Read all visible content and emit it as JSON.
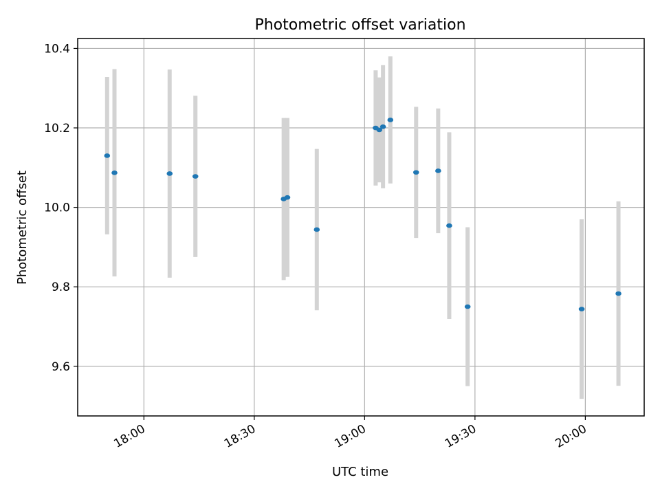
{
  "chart_data": {
    "type": "scatter",
    "title": "Photometric offset variation",
    "xlabel": "UTC time",
    "ylabel": "Photometric offset",
    "x_kind": "time",
    "xlim": [
      "17:42",
      "20:16"
    ],
    "ylim": [
      9.475,
      10.425
    ],
    "x_ticks": [
      "18:00",
      "18:30",
      "19:00",
      "19:30",
      "20:00"
    ],
    "y_ticks": [
      9.6,
      9.8,
      10.0,
      10.2,
      10.4
    ],
    "y_tick_labels": [
      "9.6",
      "9.8",
      "10.0",
      "10.2",
      "10.4"
    ],
    "grid": true,
    "point_color": "#1f77b4",
    "errorbar_color": "#d3d3d3",
    "series": [
      {
        "points": [
          {
            "x": "17:50",
            "y": 10.13,
            "err": 0.198
          },
          {
            "x": "17:52",
            "y": 10.087,
            "err": 0.261
          },
          {
            "x": "18:07",
            "y": 10.085,
            "err": 0.262
          },
          {
            "x": "18:14",
            "y": 10.078,
            "err": 0.203
          },
          {
            "x": "18:38",
            "y": 10.021,
            "err": 0.204
          },
          {
            "x": "18:39",
            "y": 10.025,
            "err": 0.2
          },
          {
            "x": "18:47",
            "y": 9.944,
            "err": 0.203
          },
          {
            "x": "19:03",
            "y": 10.2,
            "err": 0.145
          },
          {
            "x": "19:04",
            "y": 10.195,
            "err": 0.132
          },
          {
            "x": "19:05",
            "y": 10.203,
            "err": 0.155
          },
          {
            "x": "19:07",
            "y": 10.22,
            "err": 0.16
          },
          {
            "x": "19:14",
            "y": 10.088,
            "err": 0.165
          },
          {
            "x": "19:20",
            "y": 10.092,
            "err": 0.157
          },
          {
            "x": "19:23",
            "y": 9.954,
            "err": 0.235
          },
          {
            "x": "19:28",
            "y": 9.75,
            "err": 0.2
          },
          {
            "x": "19:59",
            "y": 9.744,
            "err": 0.226
          },
          {
            "x": "20:09",
            "y": 9.783,
            "err": 0.232
          }
        ]
      }
    ]
  }
}
